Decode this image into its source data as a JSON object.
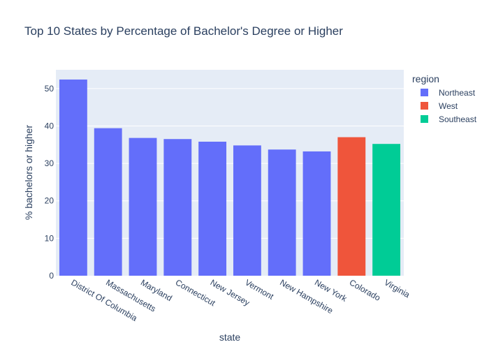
{
  "chart_data": {
    "type": "bar",
    "title": "Top 10 States by Percentage of Bachelor's Degree or Higher",
    "xlabel": "state",
    "ylabel": "% bachelors or higher",
    "ylim": [
      0,
      55
    ],
    "yticks": [
      0,
      10,
      20,
      30,
      40,
      50
    ],
    "grid": true,
    "legend": {
      "title": "region",
      "placement": "right",
      "entries": [
        {
          "name": "Northeast",
          "color": "#636efa"
        },
        {
          "name": "West",
          "color": "#ef553b"
        },
        {
          "name": "Southeast",
          "color": "#00cc96"
        }
      ]
    },
    "categories": [
      "District Of Columbia",
      "Massachusetts",
      "Maryland",
      "Connecticut",
      "New Jersey",
      "Vermont",
      "New Hampshire",
      "New York",
      "Colorado",
      "Virginia"
    ],
    "series": [
      {
        "name": "Northeast",
        "color": "#636efa",
        "points": [
          {
            "x": "District Of Columbia",
            "y": 52.4
          },
          {
            "x": "Massachusetts",
            "y": 39.4
          },
          {
            "x": "Maryland",
            "y": 36.8
          },
          {
            "x": "Connecticut",
            "y": 36.5
          },
          {
            "x": "New Jersey",
            "y": 35.8
          },
          {
            "x": "Vermont",
            "y": 34.8
          },
          {
            "x": "New Hampshire",
            "y": 33.7
          },
          {
            "x": "New York",
            "y": 33.2
          }
        ]
      },
      {
        "name": "West",
        "color": "#ef553b",
        "points": [
          {
            "x": "Colorado",
            "y": 37.0
          }
        ]
      },
      {
        "name": "Southeast",
        "color": "#00cc96",
        "points": [
          {
            "x": "Virginia",
            "y": 35.2
          }
        ]
      }
    ]
  }
}
